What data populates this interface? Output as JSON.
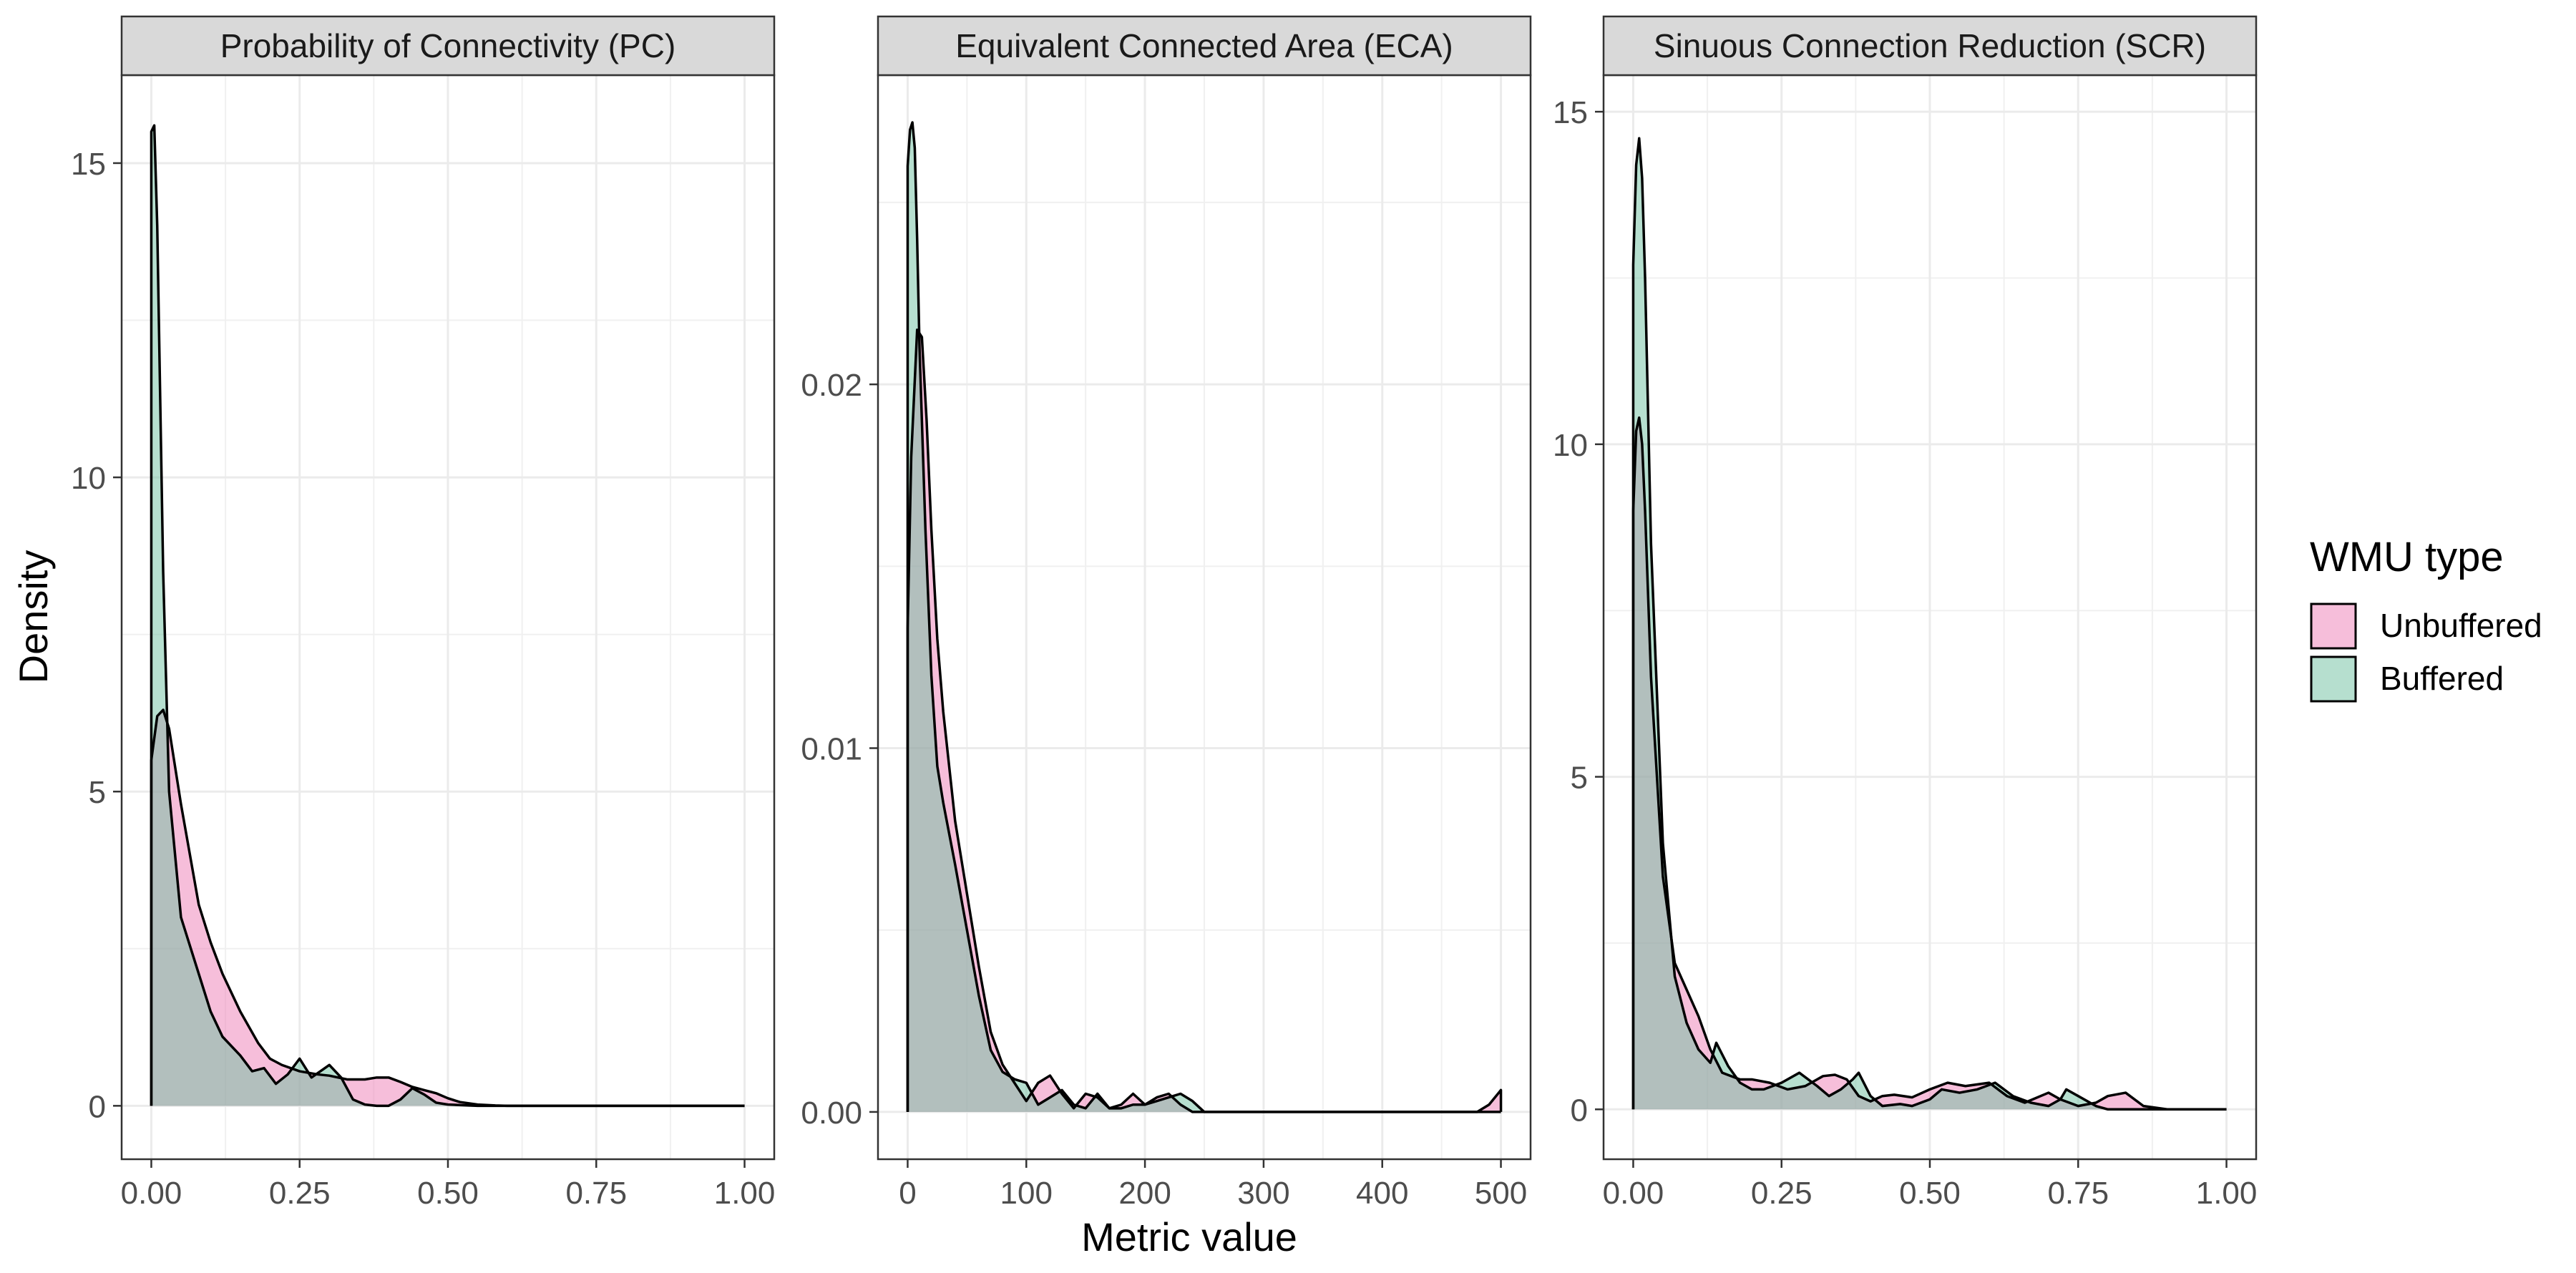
{
  "chart_data": {
    "type": "area",
    "ylabel": "Density",
    "xlabel": "Metric value",
    "grid": true,
    "legend": {
      "title": "WMU type",
      "position": "right",
      "items": [
        {
          "name": "Unbuffered",
          "color": "#EE7DB6"
        },
        {
          "name": "Buffered",
          "color": "#6DC0A0"
        }
      ]
    },
    "overlap_color": "#6E9088",
    "panels": [
      {
        "title": "Probability of Connectivity (PC)",
        "xlim": [
          -0.05,
          1.05
        ],
        "ylim": [
          -0.85,
          16.4
        ],
        "xticks": [
          0,
          0.25,
          0.5,
          0.75,
          1
        ],
        "xtick_labels": [
          "0.00",
          "0.25",
          "0.50",
          "0.75",
          "1.00"
        ],
        "yticks": [
          0,
          5,
          10,
          15
        ],
        "ytick_labels": [
          "0",
          "5",
          "10",
          "15"
        ],
        "series": [
          {
            "name": "Unbuffered",
            "x": [
              0,
              0.01,
              0.02,
              0.03,
              0.05,
              0.08,
              0.1,
              0.12,
              0.15,
              0.18,
              0.2,
              0.22,
              0.25,
              0.28,
              0.3,
              0.33,
              0.36,
              0.38,
              0.4,
              0.42,
              0.44,
              0.46,
              0.48,
              0.5,
              0.52,
              0.55,
              0.58,
              0.6,
              0.7,
              0.8,
              1.0
            ],
            "y": [
              5.5,
              6.2,
              6.3,
              6.0,
              4.8,
              3.2,
              2.6,
              2.1,
              1.5,
              1.0,
              0.75,
              0.65,
              0.55,
              0.5,
              0.48,
              0.42,
              0.42,
              0.45,
              0.45,
              0.38,
              0.3,
              0.25,
              0.2,
              0.12,
              0.06,
              0.02,
              0.005,
              0,
              0,
              0,
              0
            ]
          },
          {
            "name": "Buffered",
            "x": [
              0,
              0.005,
              0.01,
              0.02,
              0.03,
              0.05,
              0.08,
              0.1,
              0.12,
              0.15,
              0.17,
              0.19,
              0.21,
              0.23,
              0.25,
              0.27,
              0.3,
              0.32,
              0.34,
              0.36,
              0.38,
              0.4,
              0.42,
              0.44,
              0.46,
              0.48,
              0.5,
              0.55,
              0.6,
              1.0
            ],
            "y": [
              15.5,
              15.6,
              14.0,
              8.5,
              5.0,
              3.0,
              2.1,
              1.5,
              1.1,
              0.8,
              0.55,
              0.6,
              0.35,
              0.5,
              0.75,
              0.45,
              0.65,
              0.45,
              0.1,
              0.02,
              0.0,
              0.0,
              0.1,
              0.28,
              0.18,
              0.05,
              0.02,
              0,
              0,
              0
            ]
          }
        ]
      },
      {
        "title": "Equivalent Connected Area (ECA)",
        "xlim": [
          -25,
          525
        ],
        "ylim": [
          -0.0013,
          0.0285
        ],
        "xticks": [
          0,
          100,
          200,
          300,
          400,
          500
        ],
        "xtick_labels": [
          "0",
          "100",
          "200",
          "300",
          "400",
          "500"
        ],
        "yticks": [
          0,
          0.01,
          0.02
        ],
        "ytick_labels": [
          "0.00",
          "0.01",
          "0.02"
        ],
        "series": [
          {
            "name": "Unbuffered",
            "x": [
              0,
              3,
              8,
              12,
              16,
              20,
              25,
              30,
              40,
              50,
              60,
              70,
              80,
              90,
              100,
              110,
              120,
              130,
              140,
              150,
              160,
              170,
              180,
              190,
              200,
              210,
              220,
              230,
              240,
              260,
              480,
              490,
              500
            ],
            "y": [
              0.0133,
              0.018,
              0.0215,
              0.0213,
              0.019,
              0.016,
              0.013,
              0.011,
              0.008,
              0.006,
              0.004,
              0.0022,
              0.0013,
              0.0008,
              0.0003,
              0.0008,
              0.001,
              0.0005,
              0.0001,
              0.0005,
              0.0004,
              0.0001,
              0.0002,
              0.0005,
              0.0002,
              0.0004,
              0.0005,
              0.0002,
              0.0,
              0,
              0,
              0.0002,
              0.0006
            ]
          },
          {
            "name": "Buffered",
            "x": [
              0,
              2,
              4,
              6,
              8,
              10,
              15,
              20,
              25,
              30,
              40,
              50,
              60,
              70,
              80,
              90,
              100,
              110,
              120,
              130,
              140,
              150,
              160,
              170,
              180,
              190,
              200,
              210,
              220,
              230,
              240,
              250,
              260,
              500
            ],
            "y": [
              0.026,
              0.027,
              0.0272,
              0.0265,
              0.024,
              0.021,
              0.016,
              0.012,
              0.0095,
              0.0085,
              0.0068,
              0.005,
              0.0032,
              0.0017,
              0.0011,
              0.0009,
              0.0008,
              0.0002,
              0.0004,
              0.0006,
              0.0002,
              0.0001,
              0.0005,
              0.0001,
              0.0001,
              0.0002,
              0.0002,
              0.0003,
              0.0004,
              0.0005,
              0.0003,
              0.0,
              0,
              0
            ]
          }
        ]
      },
      {
        "title": "Sinuous Connection Reduction (SCR)",
        "xlim": [
          -0.05,
          1.05
        ],
        "ylim": [
          -0.75,
          15.55
        ],
        "xticks": [
          0,
          0.25,
          0.5,
          0.75,
          1
        ],
        "xtick_labels": [
          "0.00",
          "0.25",
          "0.50",
          "0.75",
          "1.00"
        ],
        "yticks": [
          0,
          5,
          10,
          15
        ],
        "ytick_labels": [
          "0",
          "5",
          "10",
          "15"
        ],
        "series": [
          {
            "name": "Unbuffered",
            "x": [
              0,
              0.005,
              0.01,
              0.015,
              0.02,
              0.03,
              0.05,
              0.07,
              0.09,
              0.11,
              0.13,
              0.15,
              0.18,
              0.2,
              0.23,
              0.26,
              0.29,
              0.32,
              0.34,
              0.36,
              0.38,
              0.4,
              0.42,
              0.44,
              0.47,
              0.5,
              0.53,
              0.56,
              0.6,
              0.63,
              0.66,
              0.7,
              0.72,
              0.75,
              0.78,
              0.8,
              0.83,
              0.86,
              0.9,
              1.0
            ],
            "y": [
              9.0,
              10.2,
              10.4,
              10.0,
              9.0,
              6.5,
              3.5,
              2.2,
              1.8,
              1.4,
              0.9,
              0.55,
              0.45,
              0.45,
              0.4,
              0.3,
              0.35,
              0.5,
              0.52,
              0.45,
              0.2,
              0.12,
              0.2,
              0.22,
              0.18,
              0.3,
              0.4,
              0.35,
              0.4,
              0.2,
              0.1,
              0.25,
              0.15,
              0.05,
              0.1,
              0.2,
              0.25,
              0.05,
              0.0,
              0
            ]
          },
          {
            "name": "Buffered",
            "x": [
              0,
              0.005,
              0.01,
              0.015,
              0.02,
              0.03,
              0.05,
              0.07,
              0.09,
              0.11,
              0.13,
              0.14,
              0.16,
              0.18,
              0.2,
              0.22,
              0.25,
              0.28,
              0.31,
              0.33,
              0.35,
              0.37,
              0.38,
              0.4,
              0.42,
              0.45,
              0.47,
              0.5,
              0.52,
              0.55,
              0.58,
              0.61,
              0.64,
              0.67,
              0.7,
              0.72,
              0.73,
              0.75,
              0.78,
              0.8,
              1.0
            ],
            "y": [
              12.7,
              14.2,
              14.6,
              14.0,
              12.5,
              8.5,
              4.0,
              2.0,
              1.3,
              0.9,
              0.7,
              1.0,
              0.65,
              0.4,
              0.3,
              0.3,
              0.4,
              0.55,
              0.35,
              0.2,
              0.3,
              0.45,
              0.55,
              0.2,
              0.05,
              0.08,
              0.05,
              0.15,
              0.3,
              0.25,
              0.3,
              0.4,
              0.2,
              0.1,
              0.05,
              0.15,
              0.3,
              0.2,
              0.05,
              0.0,
              0
            ]
          }
        ]
      }
    ]
  }
}
